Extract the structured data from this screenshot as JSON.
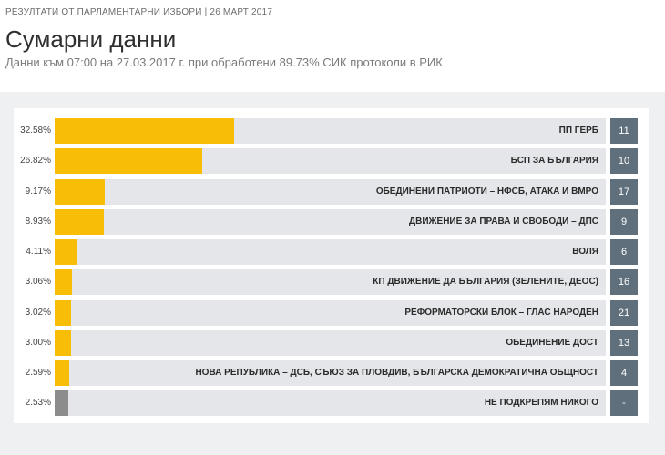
{
  "header": {
    "kicker": "РЕЗУЛТАТИ ОТ ПАРЛАМЕНТАРНИ ИЗБОРИ | 26 МАРТ 2017",
    "title": "Сумарни данни",
    "subtitle": "Данни към 07:00 на 27.03.2017 г. при обработени 89.73% СИК протоколи в РИК"
  },
  "colors": {
    "bar": "#f8bd06",
    "bar_none": "#8c8c8c",
    "track": "#e4e6e9",
    "seat_box": "#5f6f7c",
    "panel": "#eef0f2"
  },
  "chart_data": {
    "type": "bar",
    "orientation": "horizontal",
    "xlim": [
      0,
      100
    ],
    "categories": [
      "ПП ГЕРБ",
      "БСП ЗА БЪЛГАРИЯ",
      "ОБЕДИНЕНИ ПАТРИОТИ – НФСБ, АТАКА И ВМРО",
      "ДВИЖЕНИЕ ЗА ПРАВА И СВОБОДИ – ДПС",
      "ВОЛЯ",
      "КП ДВИЖЕНИЕ ДА БЪЛГАРИЯ (ЗЕЛЕНИТЕ, ДЕОС)",
      "РЕФОРМАТОРСКИ БЛОК – ГЛАС НАРОДЕН",
      "ОБЕДИНЕНИЕ ДОСТ",
      "НОВА РЕПУБЛИКА – ДСБ, СЪЮЗ ЗА ПЛОВДИВ, БЪЛГАРСКА ДЕМОКРАТИЧНА ОБЩНОСТ",
      "НЕ ПОДКРЕПЯМ НИКОГО"
    ],
    "values": [
      32.58,
      26.82,
      9.17,
      8.93,
      4.11,
      3.06,
      3.02,
      3.0,
      2.59,
      2.53
    ],
    "value_labels": [
      "32.58%",
      "26.82%",
      "9.17%",
      "8.93%",
      "4.11%",
      "3.06%",
      "3.02%",
      "3.00%",
      "2.59%",
      "2.53%"
    ],
    "seat_labels": [
      "11",
      "10",
      "17",
      "9",
      "6",
      "16",
      "21",
      "13",
      "4",
      "-"
    ],
    "grid": false,
    "legend": "none"
  }
}
